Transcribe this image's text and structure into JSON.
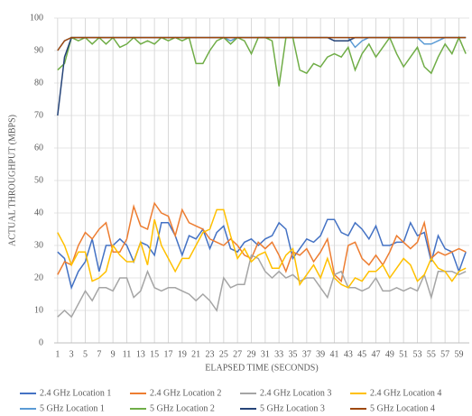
{
  "chart_data": {
    "type": "line",
    "ylabel": "ACTUAL THROUGHPUT (MBPS)",
    "xlabel": "ELAPSED TIME (SECONDS)",
    "x": [
      1,
      2,
      3,
      4,
      5,
      6,
      7,
      8,
      9,
      10,
      11,
      12,
      13,
      14,
      15,
      16,
      17,
      18,
      19,
      20,
      21,
      22,
      23,
      24,
      25,
      26,
      27,
      28,
      29,
      30,
      31,
      32,
      33,
      34,
      35,
      36,
      37,
      38,
      39,
      40,
      41,
      42,
      43,
      44,
      45,
      46,
      47,
      48,
      49,
      50,
      51,
      52,
      53,
      54,
      55,
      56,
      57,
      58,
      59,
      60
    ],
    "xlim": [
      0.5,
      60.5
    ],
    "xticks": [
      1,
      3,
      5,
      7,
      9,
      11,
      13,
      15,
      17,
      19,
      21,
      23,
      25,
      27,
      29,
      31,
      33,
      35,
      37,
      39,
      41,
      43,
      45,
      47,
      49,
      51,
      53,
      55,
      57,
      59
    ],
    "ylim": [
      0,
      100
    ],
    "yticks": [
      0,
      10,
      20,
      30,
      40,
      50,
      60,
      70,
      80,
      90,
      100
    ],
    "grid": true,
    "series": [
      {
        "name": "2.4 GHz Location 1",
        "color": "#4472c4",
        "values": [
          28,
          26,
          17,
          22,
          25,
          32,
          22,
          30,
          30,
          32,
          30,
          25,
          31,
          30,
          27,
          37,
          37,
          33,
          27,
          33,
          32,
          35,
          29,
          34,
          36,
          29,
          28,
          31,
          32,
          30,
          32,
          33,
          37,
          35,
          26,
          29,
          32,
          31,
          33,
          38,
          38,
          34,
          33,
          37,
          35,
          32,
          36,
          30,
          30,
          31,
          31,
          37,
          33,
          34,
          25,
          33,
          29,
          28,
          22,
          28
        ]
      },
      {
        "name": "2.4 GHz Location 2",
        "color": "#ed7d31",
        "values": [
          21,
          25,
          24,
          30,
          34,
          32,
          35,
          37,
          28,
          28,
          32,
          42,
          36,
          35,
          43,
          40,
          39,
          33,
          41,
          37,
          36,
          35,
          32,
          31,
          30,
          32,
          30,
          27,
          26,
          31,
          29,
          31,
          27,
          22,
          28,
          27,
          29,
          25,
          28,
          32,
          21,
          19,
          30,
          31,
          26,
          24,
          27,
          24,
          28,
          33,
          31,
          29,
          31,
          37,
          26,
          28,
          27,
          28,
          29,
          28
        ]
      },
      {
        "name": "2.4 GHz Location 3",
        "color": "#a5a5a5",
        "values": [
          8,
          10,
          8,
          12,
          16,
          13,
          17,
          17,
          16,
          20,
          20,
          14,
          16,
          22,
          17,
          16,
          17,
          17,
          16,
          15,
          13,
          15,
          13,
          10,
          20,
          17,
          18,
          18,
          27,
          26,
          22,
          20,
          22,
          20,
          21,
          19,
          20,
          20,
          17,
          14,
          21,
          22,
          17,
          17,
          16,
          17,
          20,
          16,
          16,
          17,
          16,
          17,
          16,
          21,
          14,
          22,
          22,
          22,
          21,
          22
        ]
      },
      {
        "name": "2.4 GHz Location 4",
        "color": "#ffc000",
        "values": [
          34,
          30,
          24,
          28,
          28,
          19,
          20,
          22,
          30,
          27,
          25,
          25,
          31,
          24,
          38,
          30,
          26,
          22,
          26,
          26,
          30,
          34,
          35,
          41,
          41,
          33,
          26,
          29,
          25,
          27,
          28,
          23,
          23,
          27,
          29,
          18,
          21,
          24,
          20,
          26,
          20,
          18,
          17,
          20,
          19,
          22,
          22,
          24,
          20,
          23,
          26,
          24,
          19,
          21,
          26,
          23,
          22,
          19,
          22,
          23
        ]
      },
      {
        "name": "5 GHz Location 1",
        "color": "#5b9bd5",
        "values": [
          90,
          93,
          94,
          94,
          94,
          94,
          94,
          94,
          94,
          94,
          94,
          94,
          94,
          94,
          94,
          94,
          94,
          94,
          94,
          94,
          94,
          94,
          94,
          94,
          94,
          93,
          94,
          94,
          94,
          94,
          94,
          94,
          94,
          94,
          94,
          94,
          94,
          94,
          94,
          94,
          94,
          94,
          94,
          91,
          93,
          94,
          94,
          94,
          94,
          94,
          94,
          94,
          94,
          92,
          92,
          93,
          94,
          94,
          94,
          94
        ]
      },
      {
        "name": "5 GHz Location 2",
        "color": "#70ad47",
        "values": [
          84,
          86,
          94,
          93,
          94,
          92,
          94,
          92,
          94,
          91,
          92,
          94,
          92,
          93,
          92,
          94,
          93,
          94,
          93,
          94,
          86,
          86,
          90,
          93,
          94,
          92,
          94,
          93,
          89,
          94,
          94,
          93,
          79,
          94,
          94,
          84,
          83,
          86,
          85,
          88,
          89,
          88,
          91,
          84,
          89,
          92,
          88,
          91,
          94,
          89,
          85,
          88,
          91,
          85,
          83,
          88,
          92,
          89,
          94,
          89
        ]
      },
      {
        "name": "5 GHz Location 3",
        "color": "#264478",
        "values": [
          70,
          88,
          94,
          94,
          94,
          94,
          94,
          94,
          94,
          94,
          94,
          94,
          94,
          94,
          94,
          94,
          94,
          94,
          94,
          94,
          94,
          94,
          94,
          94,
          94,
          94,
          94,
          94,
          94,
          94,
          94,
          94,
          94,
          94,
          94,
          94,
          94,
          94,
          94,
          94,
          93,
          93,
          93,
          94,
          94,
          94,
          94,
          94,
          94,
          94,
          94,
          94,
          94,
          94,
          94,
          94,
          94,
          94,
          94,
          94
        ]
      },
      {
        "name": "5 GHz Location 4",
        "color": "#9e480e",
        "values": [
          90,
          93,
          94,
          94,
          94,
          94,
          94,
          94,
          94,
          94,
          94,
          94,
          94,
          94,
          94,
          94,
          94,
          94,
          94,
          94,
          94,
          94,
          94,
          94,
          94,
          94,
          94,
          94,
          94,
          94,
          94,
          94,
          94,
          94,
          94,
          94,
          94,
          94,
          94,
          94,
          94,
          94,
          94,
          94,
          94,
          94,
          94,
          94,
          94,
          94,
          94,
          94,
          94,
          94,
          94,
          94,
          94,
          94,
          94,
          94
        ]
      }
    ]
  }
}
